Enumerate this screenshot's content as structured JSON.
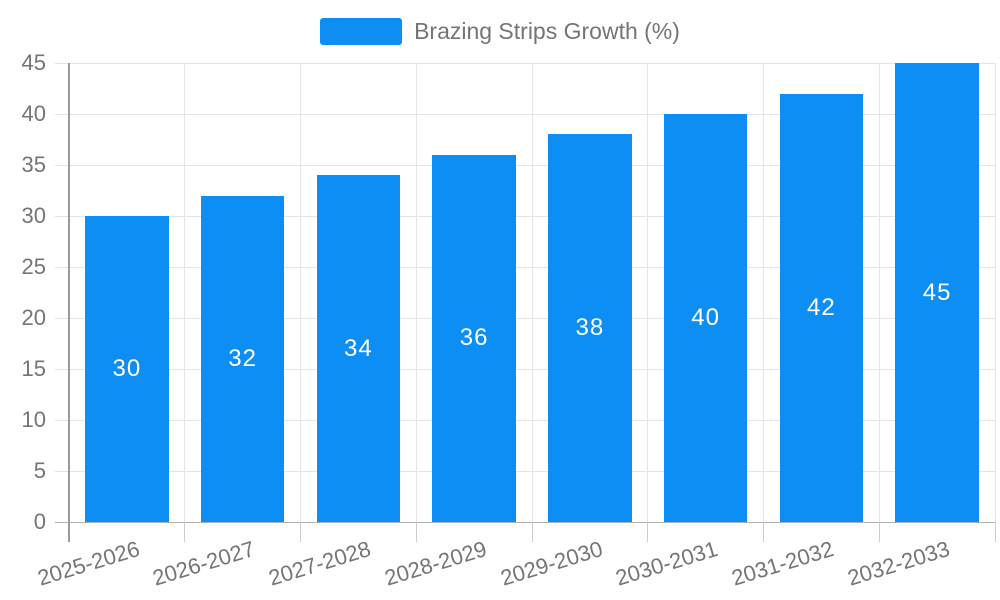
{
  "legend": {
    "label": "Brazing Strips Growth (%)"
  },
  "chart_data": {
    "type": "bar",
    "title": "",
    "categories": [
      "2025-2026",
      "2026-2027",
      "2027-2028",
      "2028-2029",
      "2029-2030",
      "2030-2031",
      "2031-2032",
      "2032-2033"
    ],
    "series": [
      {
        "name": "Brazing Strips Growth (%)",
        "values": [
          30,
          32,
          34,
          36,
          38,
          40,
          42,
          45
        ]
      }
    ],
    "bar_value_labels": [
      "30",
      "32",
      "34",
      "36",
      "38",
      "40",
      "42",
      "45"
    ],
    "xlabel": "",
    "ylabel": "",
    "ylim": [
      0,
      45
    ],
    "ytick_step": 5,
    "yticks": [
      "0",
      "5",
      "10",
      "15",
      "20",
      "25",
      "30",
      "35",
      "40",
      "45"
    ],
    "grid": true,
    "legend_position": "top-center",
    "colors": {
      "bar": "#0d8ef5",
      "bar_value_text": "#ffffff",
      "axis_label_text": "#757575",
      "legend_text": "#757575",
      "gridline": "#e4e4e4",
      "x_tick": "#cccccc",
      "baseline": "#b0b0b0",
      "y_axis_line": "#9a9a9a"
    }
  }
}
